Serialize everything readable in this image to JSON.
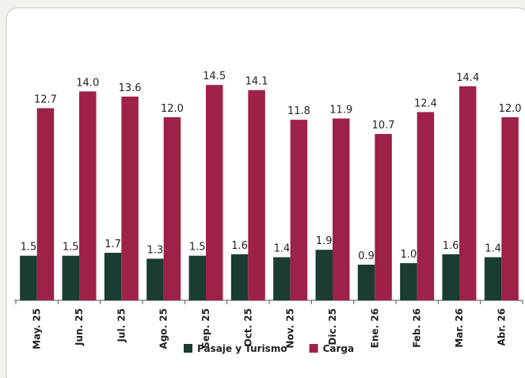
{
  "chart_data": {
    "type": "bar",
    "categories": [
      "May. 25",
      "Jun. 25",
      "Jul. 25",
      "Ago. 25",
      "Sep. 25",
      "Oct. 25",
      "Nov. 25",
      "Dic. 25",
      "Ene. 26",
      "Feb. 26",
      "Mar. 26",
      "Abr. 26"
    ],
    "series": [
      {
        "name": "Pasaje y Turismo",
        "color": "#1b3c33",
        "values": [
          1.5,
          1.5,
          1.7,
          1.3,
          1.5,
          1.6,
          1.4,
          1.9,
          0.9,
          1.0,
          1.6,
          1.4
        ]
      },
      {
        "name": "Carga",
        "color": "#9e2148",
        "axis": "y2",
        "values": [
          12.7,
          14.0,
          13.6,
          12.0,
          14.5,
          14.1,
          11.8,
          11.9,
          10.7,
          12.4,
          14.4,
          12.0
        ]
      }
    ],
    "value_labels": [
      [
        "1.5",
        "1.5",
        "1.7",
        "1.3",
        "1.5",
        "1.6",
        "1.4",
        "1.9",
        "0.9",
        "1.0",
        "1.6",
        "1.4"
      ],
      [
        "12.7",
        "14.0",
        "13.6",
        "12.0",
        "14.5",
        "14.1",
        "11.8",
        "11.9",
        "10.7",
        "12.4",
        "14.4",
        "12.0"
      ]
    ],
    "ylim": [
      -1.5,
      15.5
    ],
    "y2lim": [
      -2.2,
      17.4
    ],
    "legend": "bottom"
  }
}
